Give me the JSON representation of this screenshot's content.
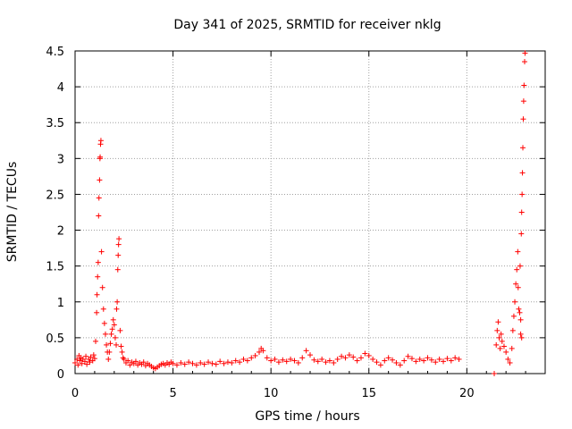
{
  "chart_data": {
    "type": "scatter",
    "title": "Day 341 of 2025, SRMTID for receiver nklg",
    "xlabel": "GPS time / hours",
    "ylabel": "SRMTID / TECUs",
    "xlim": [
      0,
      24
    ],
    "ylim": [
      0,
      4.5
    ],
    "xticks": [
      0,
      5,
      10,
      15,
      20
    ],
    "yticks": [
      0,
      0.5,
      1,
      1.5,
      2,
      2.5,
      3,
      3.5,
      4,
      4.5
    ],
    "xtick_labels": [
      "0",
      "5",
      "10",
      "15",
      "20"
    ],
    "ytick_labels": [
      "0",
      "0.5",
      "1",
      "1.5",
      "2",
      "2.5",
      "3",
      "3.5",
      "4",
      "4.5"
    ],
    "grid": true,
    "marker": "+",
    "color": "#ff0000",
    "series": [
      {
        "name": "SRMTID",
        "points": [
          [
            0.0,
            0.15
          ],
          [
            0.1,
            0.2
          ],
          [
            0.15,
            0.12
          ],
          [
            0.2,
            0.25
          ],
          [
            0.25,
            0.18
          ],
          [
            0.3,
            0.22
          ],
          [
            0.35,
            0.14
          ],
          [
            0.4,
            0.2
          ],
          [
            0.5,
            0.17
          ],
          [
            0.55,
            0.24
          ],
          [
            0.6,
            0.13
          ],
          [
            0.7,
            0.2
          ],
          [
            0.75,
            0.16
          ],
          [
            0.8,
            0.23
          ],
          [
            0.9,
            0.18
          ],
          [
            0.95,
            0.26
          ],
          [
            1.0,
            0.21
          ],
          [
            1.05,
            0.45
          ],
          [
            1.1,
            0.85
          ],
          [
            1.12,
            1.1
          ],
          [
            1.15,
            1.35
          ],
          [
            1.18,
            1.55
          ],
          [
            1.2,
            2.2
          ],
          [
            1.22,
            2.45
          ],
          [
            1.25,
            2.7
          ],
          [
            1.27,
            3.0
          ],
          [
            1.28,
            3.02
          ],
          [
            1.3,
            3.2
          ],
          [
            1.32,
            3.25
          ],
          [
            1.35,
            1.7
          ],
          [
            1.4,
            1.2
          ],
          [
            1.45,
            0.9
          ],
          [
            1.5,
            0.7
          ],
          [
            1.55,
            0.55
          ],
          [
            1.6,
            0.4
          ],
          [
            1.65,
            0.3
          ],
          [
            1.7,
            0.2
          ],
          [
            1.75,
            0.3
          ],
          [
            1.8,
            0.42
          ],
          [
            1.85,
            0.55
          ],
          [
            1.9,
            0.62
          ],
          [
            1.95,
            0.75
          ],
          [
            2.0,
            0.68
          ],
          [
            2.05,
            0.5
          ],
          [
            2.1,
            0.4
          ],
          [
            2.12,
            0.9
          ],
          [
            2.15,
            1.0
          ],
          [
            2.18,
            1.45
          ],
          [
            2.2,
            1.65
          ],
          [
            2.22,
            1.8
          ],
          [
            2.24,
            1.88
          ],
          [
            2.3,
            0.6
          ],
          [
            2.35,
            0.38
          ],
          [
            2.4,
            0.3
          ],
          [
            2.45,
            0.22
          ],
          [
            2.5,
            0.2
          ],
          [
            2.6,
            0.15
          ],
          [
            2.7,
            0.18
          ],
          [
            2.8,
            0.12
          ],
          [
            2.9,
            0.16
          ],
          [
            3.0,
            0.14
          ],
          [
            3.1,
            0.17
          ],
          [
            3.2,
            0.12
          ],
          [
            3.3,
            0.15
          ],
          [
            3.4,
            0.13
          ],
          [
            3.5,
            0.16
          ],
          [
            3.6,
            0.11
          ],
          [
            3.7,
            0.14
          ],
          [
            3.8,
            0.12
          ],
          [
            3.9,
            0.1
          ],
          [
            4.0,
            0.08
          ],
          [
            4.1,
            0.07
          ],
          [
            4.2,
            0.09
          ],
          [
            4.3,
            0.11
          ],
          [
            4.4,
            0.13
          ],
          [
            4.5,
            0.14
          ],
          [
            4.6,
            0.12
          ],
          [
            4.7,
            0.15
          ],
          [
            4.8,
            0.13
          ],
          [
            4.9,
            0.16
          ],
          [
            5.0,
            0.14
          ],
          [
            5.2,
            0.12
          ],
          [
            5.4,
            0.15
          ],
          [
            5.6,
            0.13
          ],
          [
            5.8,
            0.16
          ],
          [
            6.0,
            0.14
          ],
          [
            6.2,
            0.12
          ],
          [
            6.4,
            0.15
          ],
          [
            6.6,
            0.13
          ],
          [
            6.8,
            0.16
          ],
          [
            7.0,
            0.14
          ],
          [
            7.2,
            0.13
          ],
          [
            7.4,
            0.17
          ],
          [
            7.6,
            0.14
          ],
          [
            7.8,
            0.16
          ],
          [
            8.0,
            0.15
          ],
          [
            8.2,
            0.18
          ],
          [
            8.4,
            0.16
          ],
          [
            8.6,
            0.2
          ],
          [
            8.8,
            0.18
          ],
          [
            9.0,
            0.22
          ],
          [
            9.2,
            0.25
          ],
          [
            9.4,
            0.3
          ],
          [
            9.5,
            0.35
          ],
          [
            9.6,
            0.32
          ],
          [
            9.8,
            0.22
          ],
          [
            10.0,
            0.18
          ],
          [
            10.2,
            0.2
          ],
          [
            10.4,
            0.16
          ],
          [
            10.6,
            0.19
          ],
          [
            10.8,
            0.17
          ],
          [
            11.0,
            0.2
          ],
          [
            11.2,
            0.18
          ],
          [
            11.4,
            0.15
          ],
          [
            11.6,
            0.22
          ],
          [
            11.8,
            0.32
          ],
          [
            12.0,
            0.26
          ],
          [
            12.2,
            0.19
          ],
          [
            12.4,
            0.17
          ],
          [
            12.6,
            0.2
          ],
          [
            12.8,
            0.16
          ],
          [
            13.0,
            0.18
          ],
          [
            13.2,
            0.15
          ],
          [
            13.4,
            0.2
          ],
          [
            13.6,
            0.24
          ],
          [
            13.8,
            0.22
          ],
          [
            14.0,
            0.26
          ],
          [
            14.2,
            0.23
          ],
          [
            14.4,
            0.18
          ],
          [
            14.6,
            0.22
          ],
          [
            14.8,
            0.28
          ],
          [
            15.0,
            0.25
          ],
          [
            15.2,
            0.2
          ],
          [
            15.4,
            0.16
          ],
          [
            15.6,
            0.12
          ],
          [
            15.8,
            0.18
          ],
          [
            16.0,
            0.22
          ],
          [
            16.2,
            0.19
          ],
          [
            16.4,
            0.15
          ],
          [
            16.6,
            0.12
          ],
          [
            16.8,
            0.18
          ],
          [
            17.0,
            0.24
          ],
          [
            17.2,
            0.21
          ],
          [
            17.4,
            0.17
          ],
          [
            17.6,
            0.2
          ],
          [
            17.8,
            0.18
          ],
          [
            18.0,
            0.22
          ],
          [
            18.2,
            0.19
          ],
          [
            18.4,
            0.16
          ],
          [
            18.6,
            0.2
          ],
          [
            18.8,
            0.17
          ],
          [
            19.0,
            0.21
          ],
          [
            19.2,
            0.18
          ],
          [
            19.4,
            0.22
          ],
          [
            19.6,
            0.2
          ],
          [
            21.4,
            0.0
          ],
          [
            21.5,
            0.4
          ],
          [
            21.55,
            0.6
          ],
          [
            21.6,
            0.72
          ],
          [
            21.65,
            0.5
          ],
          [
            21.7,
            0.35
          ],
          [
            21.75,
            0.55
          ],
          [
            21.8,
            0.45
          ],
          [
            21.9,
            0.38
          ],
          [
            22.0,
            0.3
          ],
          [
            22.1,
            0.2
          ],
          [
            22.2,
            0.15
          ],
          [
            22.3,
            0.35
          ],
          [
            22.35,
            0.6
          ],
          [
            22.4,
            0.8
          ],
          [
            22.45,
            1.0
          ],
          [
            22.5,
            1.25
          ],
          [
            22.55,
            1.45
          ],
          [
            22.6,
            1.7
          ],
          [
            22.62,
            1.2
          ],
          [
            22.65,
            0.9
          ],
          [
            22.7,
            0.85
          ],
          [
            22.72,
            1.5
          ],
          [
            22.75,
            0.75
          ],
          [
            22.78,
            1.95
          ],
          [
            22.8,
            2.25
          ],
          [
            22.82,
            2.5
          ],
          [
            22.84,
            2.8
          ],
          [
            22.86,
            3.15
          ],
          [
            22.88,
            3.55
          ],
          [
            22.9,
            3.8
          ],
          [
            22.92,
            4.02
          ],
          [
            22.95,
            4.35
          ],
          [
            22.97,
            4.47
          ],
          [
            22.75,
            0.55
          ],
          [
            22.8,
            0.5
          ]
        ]
      }
    ]
  }
}
